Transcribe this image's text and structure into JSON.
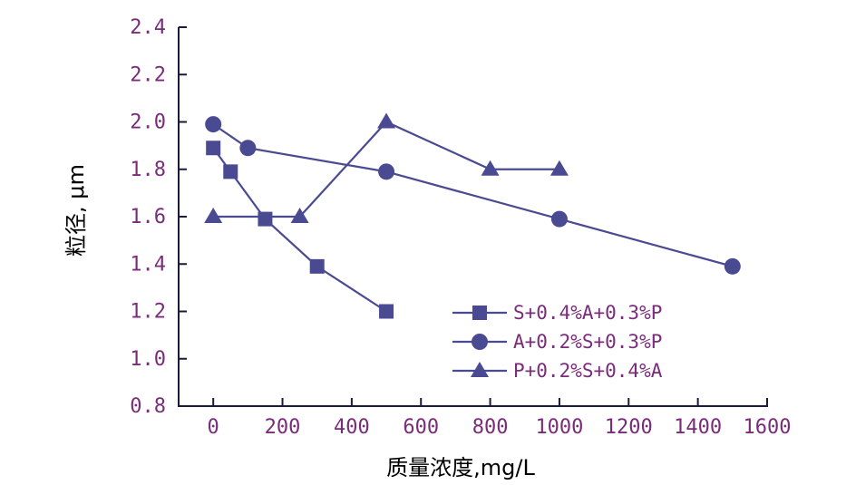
{
  "colors": {
    "text": "#7a2c7a",
    "axis": "#1a1a3a",
    "series": "#4a4a92"
  },
  "chart_data": {
    "type": "line",
    "xlabel": "质量浓度,mg/L",
    "ylabel": "粒径, μm",
    "xlim": [
      -100,
      1600
    ],
    "ylim": [
      0.8,
      2.4
    ],
    "x_ticks": [
      "0",
      "200",
      "400",
      "600",
      "800",
      "1000",
      "1200",
      "1400",
      "1600"
    ],
    "y_ticks": [
      "2.4",
      "2.2",
      "2.0",
      "1.8",
      "1.6",
      "1.4",
      "1.2",
      "1.0",
      "0.8"
    ],
    "grid": false,
    "legend_position": "bottom-right",
    "series": [
      {
        "name": "S+0.4%A+0.3%P",
        "marker": "square",
        "points": [
          [
            0,
            1.89
          ],
          [
            50,
            1.79
          ],
          [
            150,
            1.59
          ],
          [
            300,
            1.39
          ],
          [
            500,
            1.2
          ]
        ]
      },
      {
        "name": "A+0.2%S+0.3%P",
        "marker": "circle",
        "points": [
          [
            0,
            1.99
          ],
          [
            100,
            1.89
          ],
          [
            500,
            1.79
          ],
          [
            1000,
            1.59
          ],
          [
            1500,
            1.39
          ]
        ]
      },
      {
        "name": "P+0.2%S+0.4%A",
        "marker": "triangle",
        "points": [
          [
            0,
            1.6
          ],
          [
            250,
            1.6
          ],
          [
            500,
            2.0
          ],
          [
            800,
            1.8
          ],
          [
            1000,
            1.8
          ]
        ]
      }
    ]
  }
}
